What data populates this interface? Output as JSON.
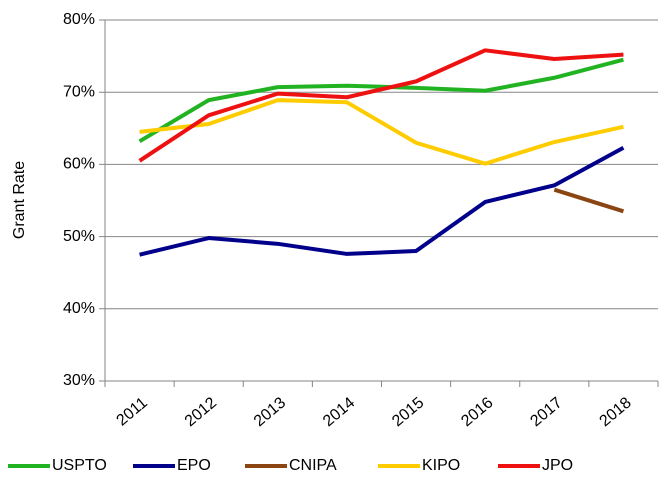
{
  "chart_data": {
    "type": "line",
    "y_label": "Grant Rate",
    "categories": [
      "2011",
      "2012",
      "2013",
      "2014",
      "2015",
      "2016",
      "2017",
      "2018"
    ],
    "series": [
      {
        "name": "USPTO",
        "color": "#22b322",
        "values": [
          63.2,
          68.9,
          70.7,
          70.9,
          70.6,
          70.2,
          72.0,
          74.5
        ]
      },
      {
        "name": "EPO",
        "color": "#00008b",
        "values": [
          47.5,
          49.8,
          49.0,
          47.6,
          48.0,
          54.8,
          57.1,
          62.3
        ]
      },
      {
        "name": "CNIPA",
        "color": "#8b4513",
        "values": [
          null,
          null,
          null,
          null,
          null,
          null,
          56.5,
          53.5
        ]
      },
      {
        "name": "KIPO",
        "color": "#ffcc00",
        "values": [
          64.5,
          65.6,
          68.9,
          68.6,
          63.0,
          60.1,
          63.1,
          65.2
        ]
      },
      {
        "name": "JPO",
        "color": "#ee1111",
        "values": [
          60.5,
          66.8,
          69.8,
          69.3,
          71.5,
          75.8,
          74.6,
          75.2
        ]
      }
    ],
    "ylim": [
      30,
      80
    ],
    "yticks": [
      {
        "value": 30,
        "label": "30%"
      },
      {
        "value": 40,
        "label": "40%"
      },
      {
        "value": 50,
        "label": "50%"
      },
      {
        "value": 60,
        "label": "60%"
      },
      {
        "value": 70,
        "label": "70%"
      },
      {
        "value": 80,
        "label": "80%"
      }
    ],
    "grid": true
  }
}
